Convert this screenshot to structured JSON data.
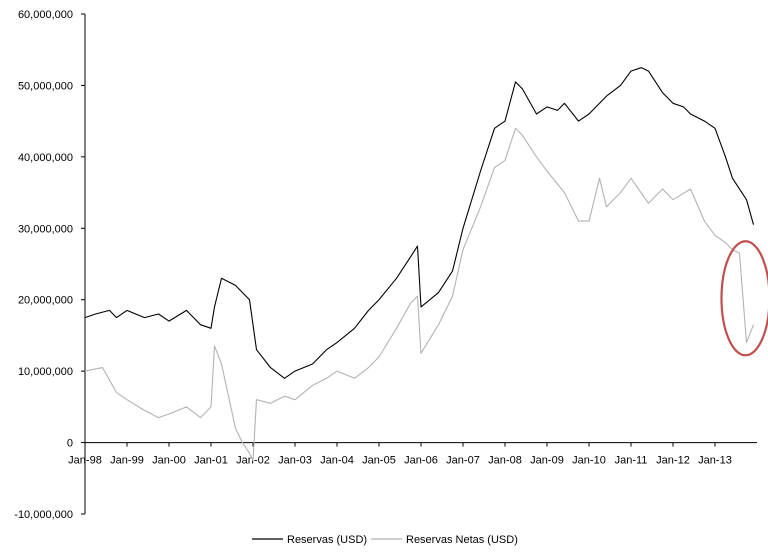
{
  "chart_data": {
    "type": "line",
    "title": "",
    "xlabel": "",
    "ylabel": "",
    "ylim": [
      -10000000,
      60000000
    ],
    "y_ticks": [
      "60,000,000",
      "50,000,000",
      "40,000,000",
      "30,000,000",
      "20,000,000",
      "10,000,000",
      "0",
      "-10,000,000"
    ],
    "y_tick_values": [
      60000000,
      50000000,
      40000000,
      30000000,
      20000000,
      10000000,
      0,
      -10000000
    ],
    "x_ticks": [
      "Jan-98",
      "Jan-99",
      "Jan-00",
      "Jan-01",
      "Jan-02",
      "Jan-03",
      "Jan-04",
      "Jan-05",
      "Jan-06",
      "Jan-07",
      "Jan-08",
      "Jan-09",
      "Jan-10",
      "Jan-11",
      "Jan-12",
      "Jan-13"
    ],
    "x_range": [
      "1998-01",
      "2013-12"
    ],
    "grid": false,
    "legend_position": "bottom",
    "annotation": "red ellipse highlighting the late-2013 drop",
    "colors": {
      "reservas": "#000000",
      "reservas_netas": "#b3b3b3",
      "annotation": "#c0504d"
    },
    "series": [
      {
        "name": "Reservas (USD)",
        "x": [
          "1998-01",
          "1998-04",
          "1998-08",
          "1998-10",
          "1999-01",
          "1999-06",
          "1999-10",
          "2000-01",
          "2000-06",
          "2000-10",
          "2001-01",
          "2001-02",
          "2001-04",
          "2001-08",
          "2001-10",
          "2001-12",
          "2002-02",
          "2002-06",
          "2002-10",
          "2003-01",
          "2003-06",
          "2003-10",
          "2004-01",
          "2004-06",
          "2004-10",
          "2005-01",
          "2005-06",
          "2005-10",
          "2005-12",
          "2006-01",
          "2006-06",
          "2006-10",
          "2007-01",
          "2007-06",
          "2007-10",
          "2008-01",
          "2008-04",
          "2008-06",
          "2008-10",
          "2009-01",
          "2009-04",
          "2009-06",
          "2009-10",
          "2010-01",
          "2010-06",
          "2010-10",
          "2011-01",
          "2011-04",
          "2011-06",
          "2011-10",
          "2012-01",
          "2012-04",
          "2012-06",
          "2012-10",
          "2013-01",
          "2013-04",
          "2013-06",
          "2013-10",
          "2013-12"
        ],
        "values": [
          17500000,
          18000000,
          18500000,
          17500000,
          18500000,
          17500000,
          18000000,
          17000000,
          18500000,
          16500000,
          16000000,
          19000000,
          23000000,
          22000000,
          21000000,
          20000000,
          13000000,
          10500000,
          9000000,
          10000000,
          11000000,
          13000000,
          14000000,
          16000000,
          18500000,
          20000000,
          23000000,
          26000000,
          27500000,
          19000000,
          21000000,
          24000000,
          30000000,
          38000000,
          44000000,
          45000000,
          50500000,
          49500000,
          46000000,
          47000000,
          46500000,
          47500000,
          45000000,
          46000000,
          48500000,
          50000000,
          52000000,
          52500000,
          52000000,
          49000000,
          47500000,
          47000000,
          46000000,
          45000000,
          44000000,
          40000000,
          37000000,
          34000000,
          30500000
        ]
      },
      {
        "name": "Reservas Netas (USD)",
        "x": [
          "1998-01",
          "1998-06",
          "1998-10",
          "1999-01",
          "1999-06",
          "1999-10",
          "2000-01",
          "2000-06",
          "2000-10",
          "2001-01",
          "2001-02",
          "2001-04",
          "2001-08",
          "2001-10",
          "2001-12",
          "2002-01",
          "2002-02",
          "2002-06",
          "2002-10",
          "2003-01",
          "2003-06",
          "2003-10",
          "2004-01",
          "2004-06",
          "2004-10",
          "2005-01",
          "2005-06",
          "2005-10",
          "2005-12",
          "2006-01",
          "2006-06",
          "2006-10",
          "2007-01",
          "2007-06",
          "2007-10",
          "2008-01",
          "2008-04",
          "2008-06",
          "2008-10",
          "2009-01",
          "2009-06",
          "2009-10",
          "2010-01",
          "2010-04",
          "2010-06",
          "2010-10",
          "2011-01",
          "2011-06",
          "2011-10",
          "2012-01",
          "2012-06",
          "2012-10",
          "2013-01",
          "2013-04",
          "2013-06",
          "2013-08",
          "2013-10",
          "2013-12"
        ],
        "values": [
          10000000,
          10500000,
          7000000,
          6000000,
          4500000,
          3500000,
          4000000,
          5000000,
          3500000,
          5000000,
          13500000,
          11000000,
          2000000,
          0,
          -1500000,
          -2500000,
          6000000,
          5500000,
          6500000,
          6000000,
          8000000,
          9000000,
          10000000,
          9000000,
          10500000,
          12000000,
          16000000,
          19500000,
          20500000,
          12500000,
          16500000,
          20500000,
          27000000,
          33000000,
          38500000,
          39500000,
          44000000,
          43000000,
          40000000,
          38000000,
          35000000,
          31000000,
          31000000,
          37000000,
          33000000,
          35000000,
          37000000,
          33500000,
          35500000,
          34000000,
          35500000,
          31000000,
          29000000,
          28000000,
          27000000,
          26500000,
          14000000,
          16500000
        ]
      }
    ]
  }
}
